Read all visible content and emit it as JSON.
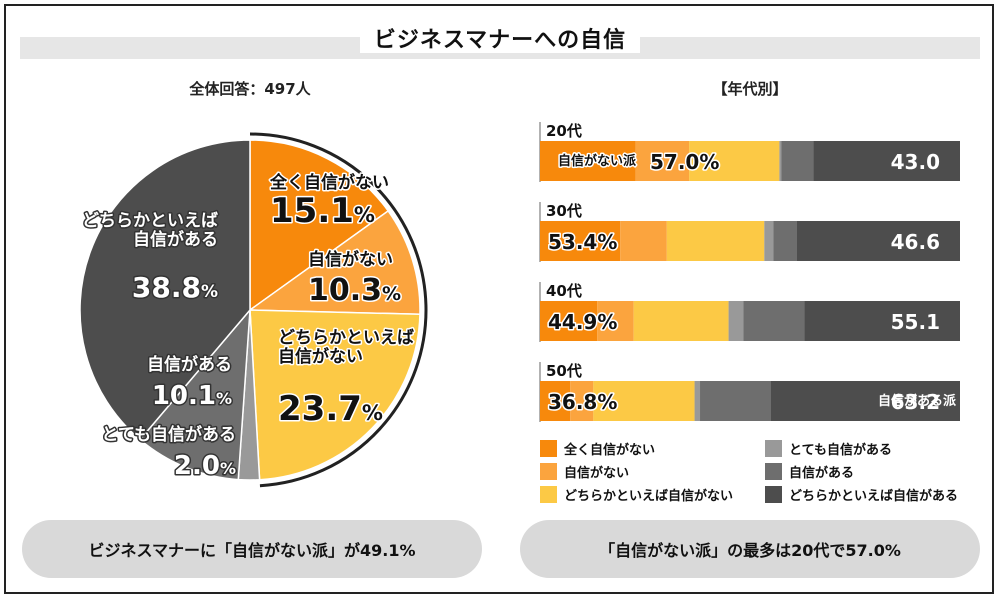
{
  "title": "ビジネスマナーへの自信",
  "pie_subtitle": "全体回答：497人",
  "bar_subtitle": "【年代別】",
  "colors": {
    "not_at_all": "#f7890c",
    "not_confident": "#fba43e",
    "rather_not": "#fcc945",
    "very": "#999999",
    "confident": "#6e6e6e",
    "rather_confident": "#4d4d4d",
    "border": "#222222"
  },
  "chart_data": [
    {
      "type": "pie",
      "slices": [
        {
          "label": "全く自信がない",
          "value": 15.1,
          "display": "15.1",
          "color_key": "not_at_all"
        },
        {
          "label": "自信がない",
          "value": 10.3,
          "display": "10.3",
          "color_key": "not_confident"
        },
        {
          "label": "どちらかといえば自信がない",
          "label_lines": [
            "どちらかといえば",
            "自信がない"
          ],
          "value": 23.7,
          "display": "23.7",
          "color_key": "rather_not"
        },
        {
          "label": "とても自信がある",
          "value": 2.0,
          "display": "2.0",
          "color_key": "very"
        },
        {
          "label": "自信がある",
          "value": 10.1,
          "display": "10.1",
          "color_key": "confident"
        },
        {
          "label": "どちらかといえば自信がある",
          "label_lines": [
            "どちらかといえば",
            "自信がある"
          ],
          "value": 38.8,
          "display": "38.8",
          "color_key": "rather_confident"
        }
      ],
      "unit": "%"
    },
    {
      "type": "bar",
      "orientation": "horizontal-stacked",
      "categories": [
        "20代",
        "30代",
        "40代",
        "50代"
      ],
      "series": [
        {
          "name": "全く自信がない",
          "color_key": "not_at_all",
          "values": [
            22.8,
            19.1,
            13.6,
            7.2
          ]
        },
        {
          "name": "自信がない",
          "color_key": "not_confident",
          "values": [
            12.7,
            11.1,
            8.7,
            5.5
          ]
        },
        {
          "name": "どちらかといえば自信がない",
          "color_key": "rather_not",
          "values": [
            21.5,
            23.2,
            22.6,
            24.1
          ]
        },
        {
          "name": "とても自信がある",
          "color_key": "very",
          "values": [
            0.5,
            2.2,
            3.5,
            1.3
          ]
        },
        {
          "name": "自信がある",
          "color_key": "confident",
          "values": [
            7.6,
            5.5,
            14.5,
            16.9
          ]
        },
        {
          "name": "どちらかといえば自信がある",
          "color_key": "rather_confident",
          "values": [
            34.9,
            38.9,
            37.1,
            45.0
          ]
        }
      ],
      "group_totals": [
        {
          "not_confident_total": "57.0",
          "confident_total": "43.0"
        },
        {
          "not_confident_total": "53.4",
          "confident_total": "46.6"
        },
        {
          "not_confident_total": "44.9",
          "confident_total": "55.1"
        },
        {
          "not_confident_total": "36.8",
          "confident_total": "63.2"
        }
      ],
      "inline_labels": {
        "not_confident_group": "自信がない派",
        "confident_group": "自信がある派"
      },
      "unit": "%",
      "legend_position": "bottom"
    }
  ],
  "summary": {
    "left": "ビジネスマナーに「自信がない派」が49.1%",
    "right": "「自信がない派」の最多は20代で57.0%"
  }
}
